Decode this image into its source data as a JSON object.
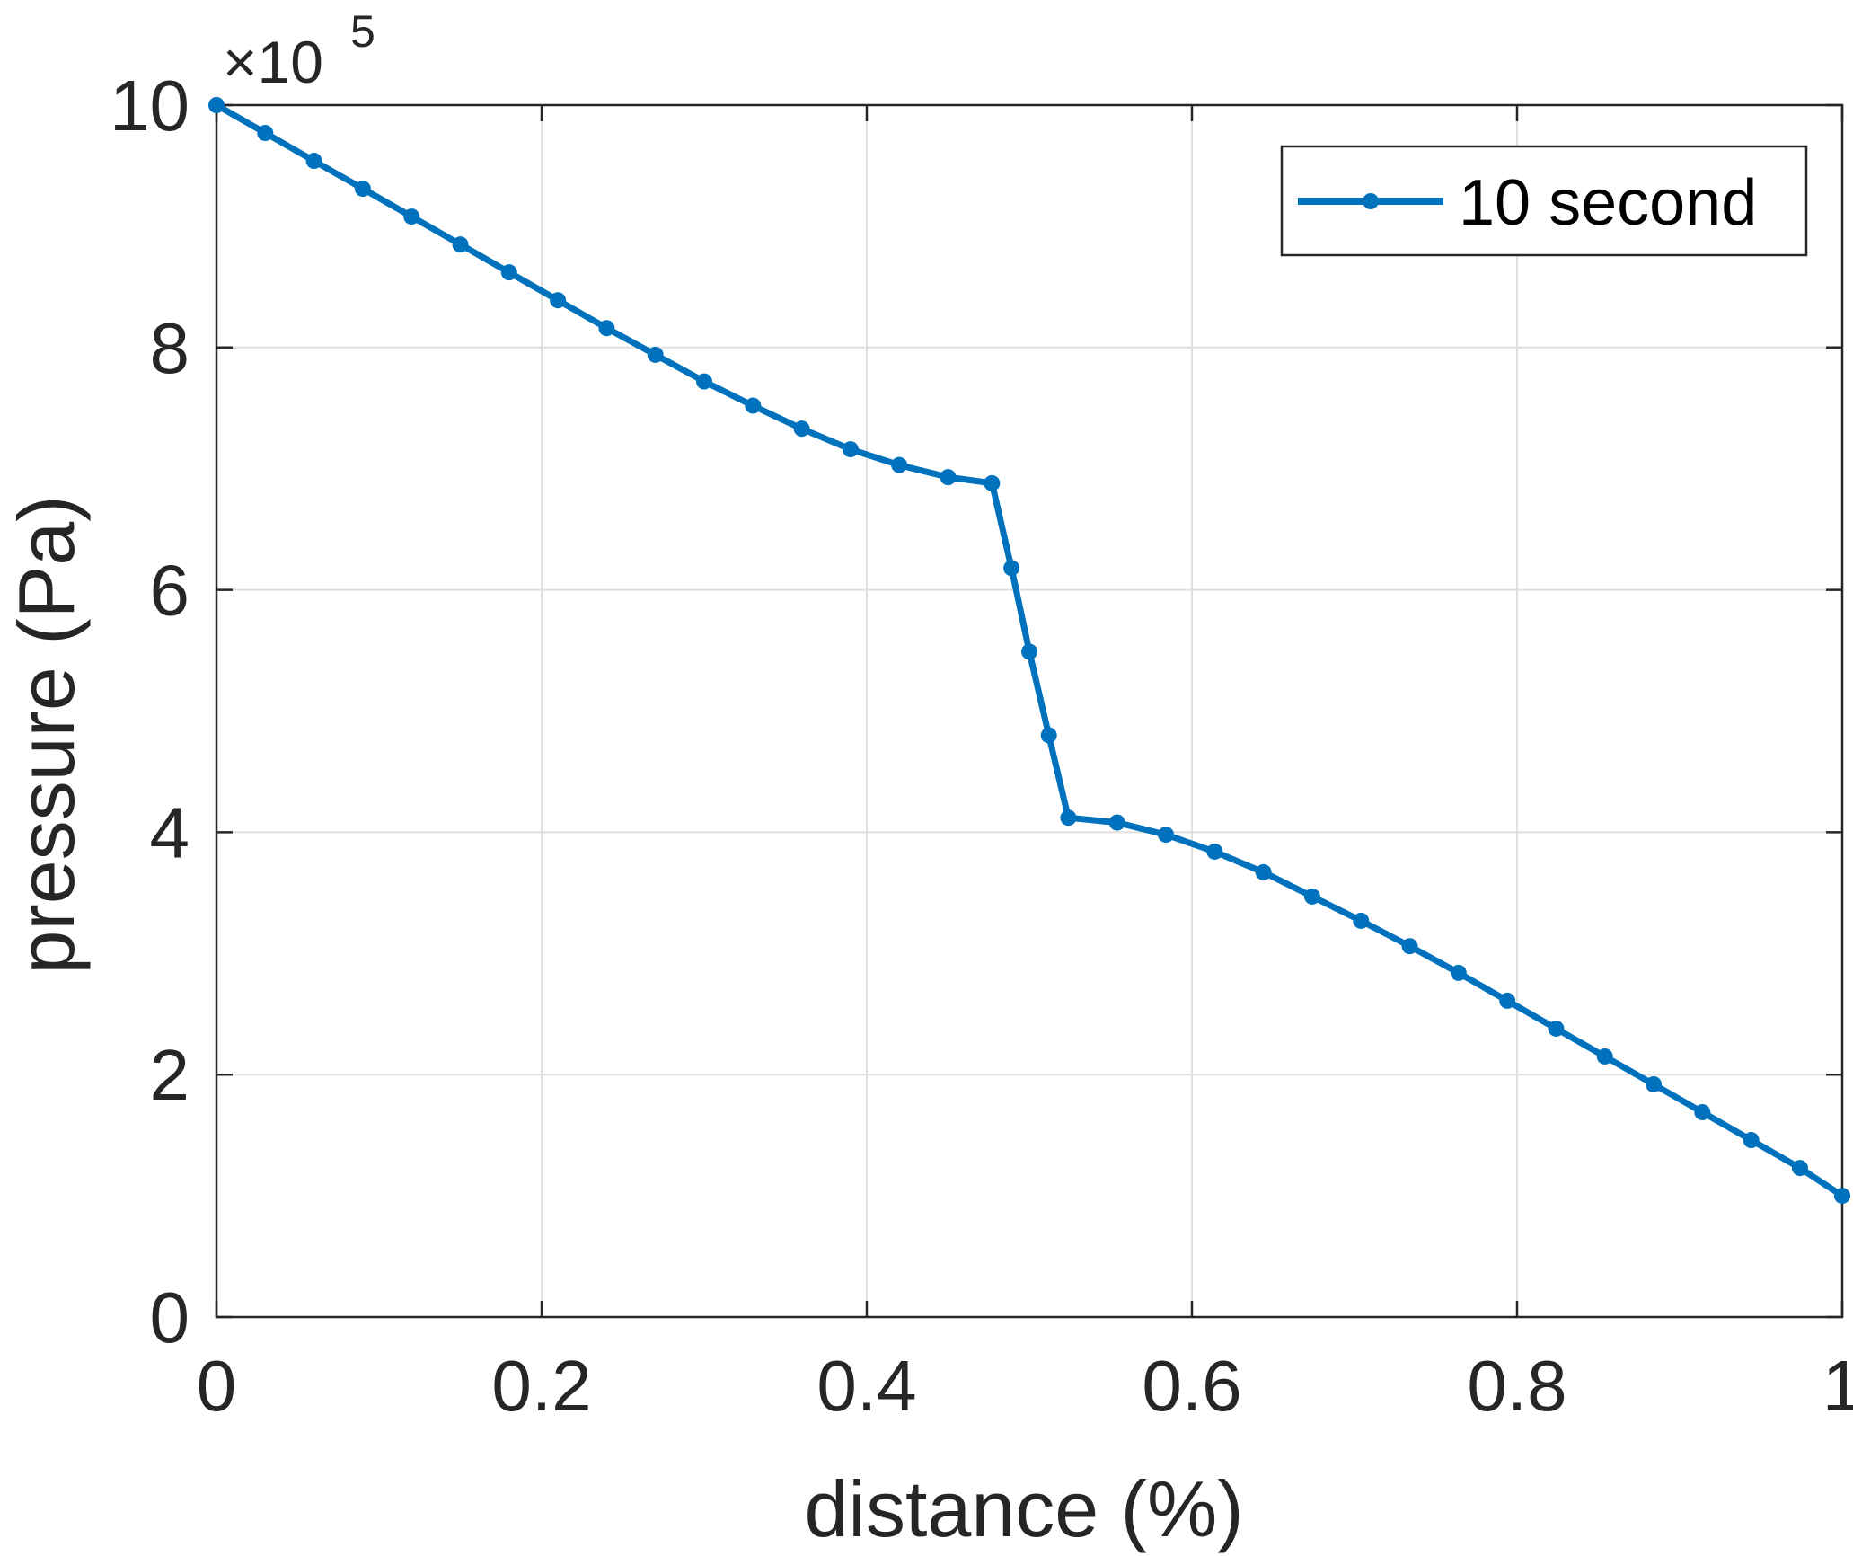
{
  "chart_data": {
    "type": "line",
    "title": "",
    "xlabel": "distance (%)",
    "ylabel": "pressure (Pa)",
    "xlim": [
      0,
      1
    ],
    "ylim": [
      0,
      10
    ],
    "y_multiplier": {
      "base": "×10",
      "exponent": "5"
    },
    "xticks": [
      0,
      0.2,
      0.4,
      0.6,
      0.8,
      1
    ],
    "xtick_labels": [
      "0",
      "0.2",
      "0.4",
      "0.6",
      "0.8",
      "1"
    ],
    "yticks": [
      0,
      2,
      4,
      6,
      8,
      10
    ],
    "ytick_labels": [
      "0",
      "2",
      "4",
      "6",
      "8",
      "10"
    ],
    "grid": true,
    "legend_position": "top-right",
    "colors": {
      "series": "#0072BD",
      "axis": "#262626",
      "grid": "#DFDFDF"
    },
    "series": [
      {
        "name": "10 second",
        "marker": "dot",
        "x": [
          0,
          0.03,
          0.06,
          0.09,
          0.12,
          0.15,
          0.18,
          0.21,
          0.24,
          0.27,
          0.3,
          0.33,
          0.36,
          0.39,
          0.42,
          0.45,
          0.477,
          0.489,
          0.5,
          0.512,
          0.524,
          0.554,
          0.584,
          0.614,
          0.644,
          0.674,
          0.704,
          0.734,
          0.764,
          0.794,
          0.824,
          0.854,
          0.884,
          0.914,
          0.944,
          0.974,
          1.0
        ],
        "y": [
          10.0,
          9.77,
          9.54,
          9.31,
          9.08,
          8.85,
          8.62,
          8.39,
          8.16,
          7.94,
          7.72,
          7.52,
          7.33,
          7.16,
          7.03,
          6.93,
          6.88,
          6.18,
          5.49,
          4.8,
          4.12,
          4.08,
          3.98,
          3.84,
          3.67,
          3.47,
          3.27,
          3.06,
          2.84,
          2.61,
          2.38,
          2.15,
          1.92,
          1.69,
          1.46,
          1.23,
          1.0
        ]
      }
    ]
  }
}
